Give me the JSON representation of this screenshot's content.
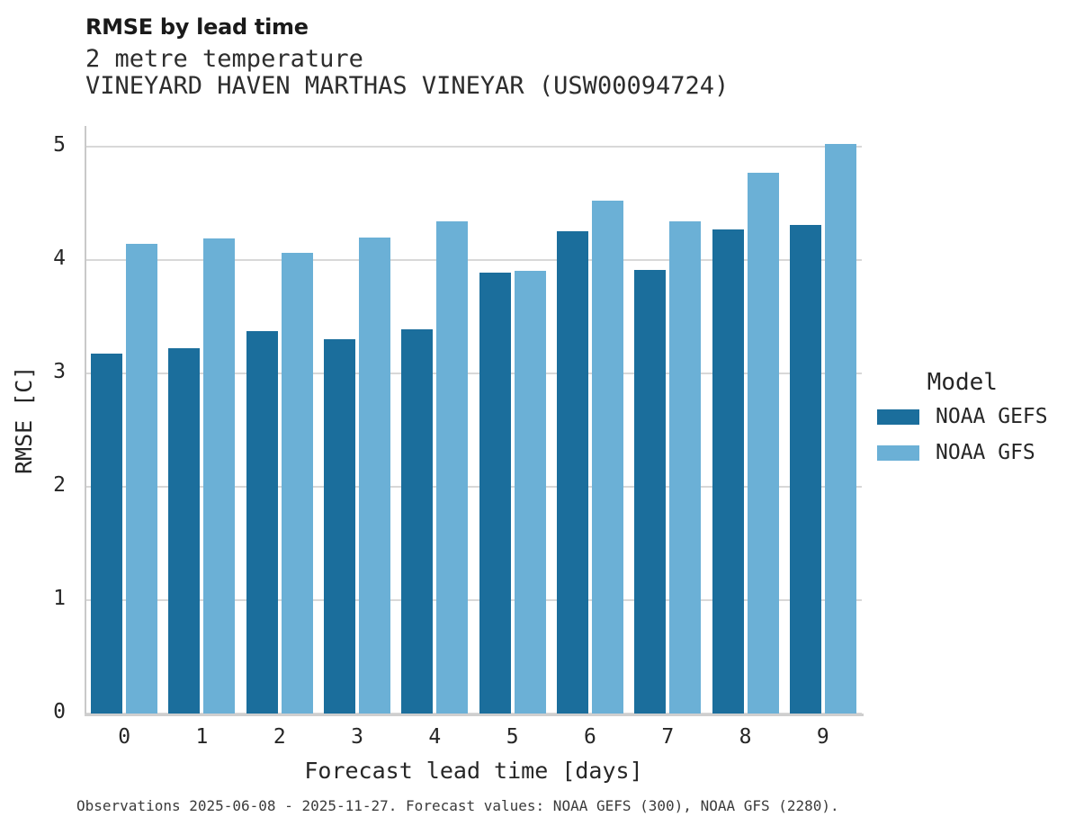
{
  "header": {
    "title": "RMSE by lead time",
    "subtitle1": "2 metre temperature",
    "subtitle2": "VINEYARD HAVEN MARTHAS VINEYAR (USW00094724)"
  },
  "chart_data": {
    "type": "bar",
    "title": "RMSE by lead time",
    "categories": [
      "0",
      "1",
      "2",
      "3",
      "4",
      "5",
      "6",
      "7",
      "8",
      "9"
    ],
    "series": [
      {
        "name": "NOAA GEFS",
        "color": "#1b6e9c",
        "values": [
          3.17,
          3.22,
          3.37,
          3.3,
          3.39,
          3.89,
          4.25,
          3.91,
          4.27,
          4.31
        ]
      },
      {
        "name": "NOAA GFS",
        "color": "#6bb0d6",
        "values": [
          4.14,
          4.19,
          4.06,
          4.2,
          4.34,
          3.9,
          4.52,
          4.34,
          4.77,
          5.02
        ]
      }
    ],
    "xlabel": "Forecast lead time [days]",
    "ylabel": "RMSE [C]",
    "ylim": [
      0,
      5.18
    ],
    "yticks": [
      0,
      1,
      2,
      3,
      4,
      5
    ],
    "grid": "horizontal",
    "legend_title": "Model",
    "legend_position": "right"
  },
  "caption": "Observations 2025-06-08 - 2025-11-27. Forecast values: NOAA GEFS (300), NOAA GFS (2280)."
}
